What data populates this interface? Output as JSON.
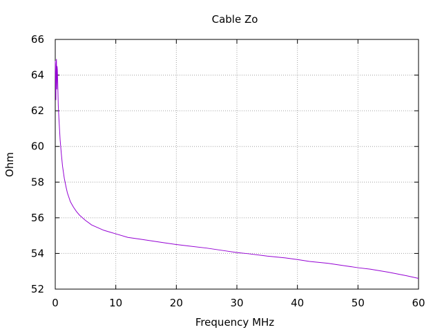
{
  "chart_data": {
    "type": "line",
    "title": "Cable Zo",
    "xlabel": "Frequency MHz",
    "ylabel": "Ohm",
    "xlim": [
      0,
      60
    ],
    "ylim": [
      52,
      66
    ],
    "xticks": [
      0,
      10,
      20,
      30,
      40,
      50,
      60
    ],
    "yticks": [
      52,
      54,
      56,
      58,
      60,
      62,
      64,
      66
    ],
    "grid": true,
    "legend": "none",
    "colors": {
      "line": "#9400d3",
      "grid": "#a0a0a0",
      "axis": "#000000"
    },
    "series": [
      {
        "x": [
          0.0,
          0.05,
          0.1,
          0.15,
          0.2,
          0.25,
          0.3,
          0.35,
          0.4,
          0.5,
          0.6,
          0.7,
          0.8,
          1.0,
          1.2,
          1.5,
          1.8,
          2.0,
          2.5,
          3.0,
          3.5,
          4.0,
          4.5,
          5.0,
          6.0,
          7.0,
          8.0,
          9.0,
          10.0,
          12.0,
          14.0,
          16.0,
          18.0,
          20.0,
          22.0,
          25.0,
          28.0,
          30.0,
          32.0,
          35.0,
          38.0,
          40.0,
          42.0,
          45.0,
          48.0,
          50.0,
          52.0,
          55.0,
          58.0,
          60.0
        ],
        "y": [
          64.8,
          63.5,
          62.6,
          64.6,
          64.9,
          63.2,
          64.5,
          64.3,
          63.7,
          62.3,
          61.6,
          61.0,
          60.4,
          59.6,
          58.9,
          58.2,
          57.7,
          57.4,
          56.9,
          56.6,
          56.35,
          56.15,
          56.0,
          55.85,
          55.6,
          55.45,
          55.3,
          55.2,
          55.1,
          54.9,
          54.8,
          54.7,
          54.6,
          54.5,
          54.42,
          54.3,
          54.15,
          54.05,
          53.98,
          53.85,
          53.75,
          53.66,
          53.55,
          53.45,
          53.3,
          53.2,
          53.12,
          52.95,
          52.75,
          52.6
        ]
      }
    ]
  }
}
